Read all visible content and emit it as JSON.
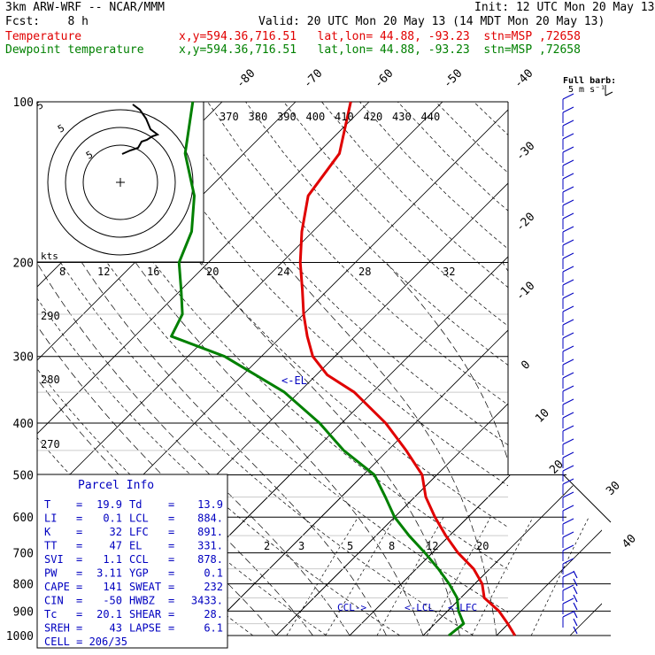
{
  "header": {
    "line1_left": "3km ARW-WRF -- NCAR/MMM",
    "line1_right": "Init: 12 UTC Mon 20 May 13",
    "line2_left": "Fcst:    8 h",
    "line2_right": "Valid: 20 UTC Mon 20 May 13 (14 MDT Mon 20 May 13)",
    "line3_left": "Temperature",
    "line3_right": "x,y=594.36,716.51   lat,lon= 44.88, -93.23  stn=MSP ,72658",
    "line4_left": "Dewpoint temperature",
    "line4_right": "x,y=594.36,716.51   lat,lon= 44.88, -93.23  stn=MSP ,72658"
  },
  "colors": {
    "temperature": "#e00000",
    "dewpoint": "#008000",
    "barbs": "#0000c0",
    "parcel": "#0000c0",
    "grid": "#000000"
  },
  "chart_data": {
    "type": "line",
    "chart_kind": "skew-T log-p sounding",
    "pressure_ticks": [
      100,
      200,
      300,
      400,
      500,
      600,
      700,
      800,
      900,
      1000
    ],
    "skewed_temp_labels": [
      "-80",
      "-70",
      "-60",
      "-50",
      "-40",
      "-30",
      "-20",
      "-10",
      "0",
      "10",
      "20",
      "30",
      "40"
    ],
    "theta_labels": [
      "370",
      "380",
      "390",
      "400",
      "410",
      "420",
      "430",
      "440"
    ],
    "lower_theta_labels": [
      "290",
      "280",
      "270"
    ],
    "mixing_ratio_labels": [
      "2",
      "3",
      "5",
      "8",
      "12",
      "20"
    ],
    "hodograph_speed_labels": [
      "8",
      "12",
      "16",
      "20",
      "24",
      "28",
      "32"
    ],
    "hodograph_ring_labels": [
      "5",
      "5",
      "5"
    ],
    "hodograph_units": "kts",
    "barb_legend": [
      "Full barb:",
      "5 m s⁻¹"
    ],
    "el_marker": "<-EL",
    "lcl_markers": [
      "CCL->",
      "<-LCL",
      "<-LFC"
    ],
    "series": [
      {
        "name": "Temperature",
        "points": [
          {
            "p": 1000,
            "t": 22.5
          },
          {
            "p": 950,
            "t": 19.9
          },
          {
            "p": 900,
            "t": 17.0
          },
          {
            "p": 850,
            "t": 13.2
          },
          {
            "p": 800,
            "t": 11.0
          },
          {
            "p": 750,
            "t": 7.8
          },
          {
            "p": 700,
            "t": 3.5
          },
          {
            "p": 650,
            "t": -0.5
          },
          {
            "p": 600,
            "t": -4.5
          },
          {
            "p": 550,
            "t": -8.5
          },
          {
            "p": 500,
            "t": -12.0
          },
          {
            "p": 450,
            "t": -17.5
          },
          {
            "p": 400,
            "t": -24.0
          },
          {
            "p": 350,
            "t": -32.5
          },
          {
            "p": 325,
            "t": -38.5
          },
          {
            "p": 300,
            "t": -43.0
          },
          {
            "p": 275,
            "t": -46.5
          },
          {
            "p": 250,
            "t": -50.0
          },
          {
            "p": 225,
            "t": -53.5
          },
          {
            "p": 200,
            "t": -57.5
          },
          {
            "p": 175,
            "t": -61.5
          },
          {
            "p": 150,
            "t": -65.5
          },
          {
            "p": 125,
            "t": -67.0
          },
          {
            "p": 100,
            "t": -72.5
          }
        ]
      },
      {
        "name": "Dewpoint temperature",
        "points": [
          {
            "p": 1000,
            "t": 13.5
          },
          {
            "p": 950,
            "t": 13.9
          },
          {
            "p": 900,
            "t": 11.5
          },
          {
            "p": 850,
            "t": 9.5
          },
          {
            "p": 800,
            "t": 6.5
          },
          {
            "p": 750,
            "t": 3.0
          },
          {
            "p": 700,
            "t": -1.0
          },
          {
            "p": 650,
            "t": -5.5
          },
          {
            "p": 600,
            "t": -10.0
          },
          {
            "p": 550,
            "t": -14.0
          },
          {
            "p": 500,
            "t": -18.5
          },
          {
            "p": 450,
            "t": -26.0
          },
          {
            "p": 400,
            "t": -33.0
          },
          {
            "p": 350,
            "t": -42.0
          },
          {
            "p": 300,
            "t": -55.0
          },
          {
            "p": 275,
            "t": -65.0
          },
          {
            "p": 250,
            "t": -66.5
          },
          {
            "p": 225,
            "t": -70.0
          },
          {
            "p": 200,
            "t": -74.0
          },
          {
            "p": 175,
            "t": -76.5
          },
          {
            "p": 150,
            "t": -81.0
          },
          {
            "p": 125,
            "t": -88.0
          },
          {
            "p": 100,
            "t": -94.0
          }
        ]
      }
    ],
    "ylim": [
      1000,
      100
    ],
    "y_scale": "log",
    "grid": true
  },
  "parcel_info": {
    "title": "Parcel Info",
    "rows": [
      {
        "k1": "T",
        "v1": "19.9",
        "k2": "Td",
        "v2": "13.9"
      },
      {
        "k1": "LI",
        "v1": "0.1",
        "k2": "LCL",
        "v2": "884."
      },
      {
        "k1": "K",
        "v1": "32",
        "k2": "LFC",
        "v2": "891."
      },
      {
        "k1": "TT",
        "v1": "47",
        "k2": "EL",
        "v2": "331."
      },
      {
        "k1": "SVI",
        "v1": "1.1",
        "k2": "CCL",
        "v2": "878."
      },
      {
        "k1": "PW",
        "v1": "3.11",
        "k2": "YGP",
        "v2": "0.1"
      },
      {
        "k1": "CAPE",
        "v1": "141",
        "k2": "SWEAT",
        "v2": "232"
      },
      {
        "k1": "CIN",
        "v1": "-50",
        "k2": "HWBZ",
        "v2": "3433."
      },
      {
        "k1": "Tc",
        "v1": "20.1",
        "k2": "SHEAR",
        "v2": "28."
      },
      {
        "k1": "SREH",
        "v1": "43",
        "k2": "LAPSE",
        "v2": "6.1"
      }
    ],
    "cell": "CELL = 206/35"
  }
}
